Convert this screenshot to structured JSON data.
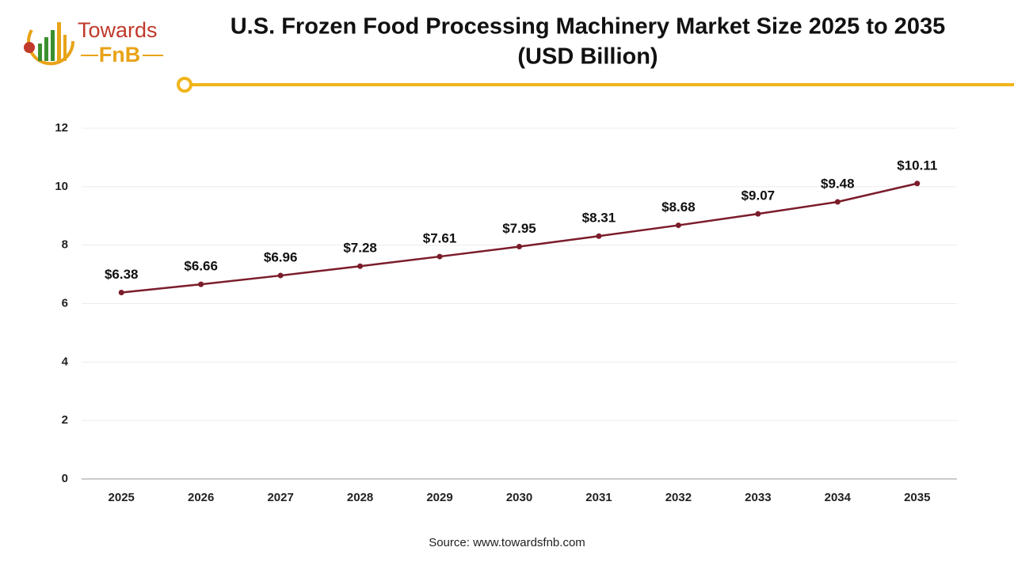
{
  "logo": {
    "name": "Towards",
    "brand": "FnB"
  },
  "chart_data": {
    "type": "line",
    "title": "U.S. Frozen Food Processing Machinery Market Size 2025 to 2035",
    "subtitle": "(USD Billion)",
    "source": "Source: www.towardsfnb.com",
    "categories": [
      "2025",
      "2026",
      "2027",
      "2028",
      "2029",
      "2030",
      "2031",
      "2032",
      "2033",
      "2034",
      "2035"
    ],
    "values": [
      6.38,
      6.66,
      6.96,
      7.28,
      7.61,
      7.95,
      8.31,
      8.68,
      9.07,
      9.48,
      10.11
    ],
    "value_labels": [
      "$6.38",
      "$6.66",
      "$6.96",
      "$7.28",
      "$7.61",
      "$7.95",
      "$8.31",
      "$8.68",
      "$9.07",
      "$9.48",
      "$10.11"
    ],
    "color": "#7b1c2a",
    "ylim": [
      0,
      12
    ],
    "yticks": [
      0,
      2,
      4,
      6,
      8,
      10,
      12
    ],
    "grid": true
  }
}
